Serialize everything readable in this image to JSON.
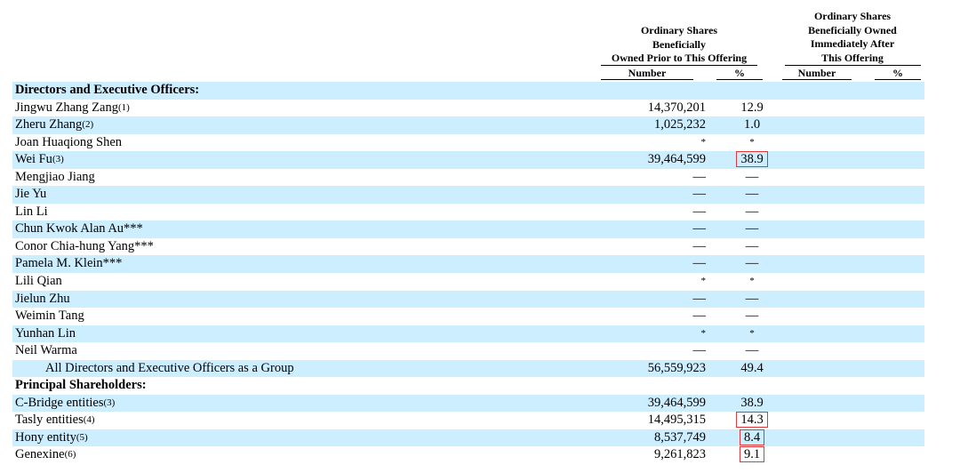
{
  "header": {
    "prior_title_lines": [
      "Ordinary Shares",
      "Beneficially",
      "Owned Prior to This Offering"
    ],
    "after_title_lines": [
      "Ordinary Shares",
      "Beneficially Owned",
      "Immediately After",
      "This Offering"
    ],
    "prior_number_label": "Number",
    "prior_percent_label": "%",
    "after_number_label": "Number",
    "after_percent_label": "%"
  },
  "rows": [
    {
      "name": "Directors and Executive Officers:",
      "section": true,
      "shade": true
    },
    {
      "name": "Jingwu Zhang Zang",
      "fn": "(1)",
      "number": "14,370,201",
      "percent": "12.9"
    },
    {
      "name": "Zheru Zhang",
      "fn": "(2)",
      "number": "1,025,232",
      "percent": "1.0",
      "shade": true
    },
    {
      "name": "Joan Huaqiong Shen",
      "number": "*",
      "percent": "*"
    },
    {
      "name": "Wei Fu",
      "fn": "(3)",
      "number": "39,464,599",
      "percent": "38.9",
      "shade": true,
      "highlight": true
    },
    {
      "name": "Mengjiao Jiang",
      "number": "—",
      "percent": "—"
    },
    {
      "name": "Jie Yu",
      "number": "—",
      "percent": "—",
      "shade": true
    },
    {
      "name": "Lin Li",
      "number": "—",
      "percent": "—"
    },
    {
      "name": "Chun Kwok Alan Au***",
      "number": "—",
      "percent": "—",
      "shade": true
    },
    {
      "name": "Conor Chia-hung Yang***",
      "number": "—",
      "percent": "—"
    },
    {
      "name": "Pamela M. Klein***",
      "number": "—",
      "percent": "—",
      "shade": true
    },
    {
      "name": "Lili Qian",
      "number": "*",
      "percent": "*"
    },
    {
      "name": "Jielun Zhu",
      "number": "—",
      "percent": "—",
      "shade": true
    },
    {
      "name": "Weimin Tang",
      "number": "—",
      "percent": "—"
    },
    {
      "name": "Yunhan Lin",
      "number": "*",
      "percent": "*",
      "shade": true
    },
    {
      "name": "Neil Warma",
      "number": "—",
      "percent": "—"
    },
    {
      "name": "All Directors and Executive Officers as a Group",
      "indent": true,
      "number": "56,559,923",
      "percent": "49.4",
      "shade": true
    },
    {
      "name": "Principal Shareholders:",
      "section": true
    },
    {
      "name": "C-Bridge entities",
      "fn": "(3)",
      "number": "39,464,599",
      "percent": "38.9",
      "shade": true
    },
    {
      "name": "Tasly entities",
      "fn": "(4)",
      "number": "14,495,315",
      "percent": "14.3",
      "highlight": true
    },
    {
      "name": "Hony entity",
      "fn": "(5)",
      "number": "8,537,749",
      "percent": "8.4",
      "shade": true,
      "highlight": true
    },
    {
      "name": "Genexine",
      "fn": "(6)",
      "number": "9,261,823",
      "percent": "9.1",
      "highlight": true
    }
  ]
}
